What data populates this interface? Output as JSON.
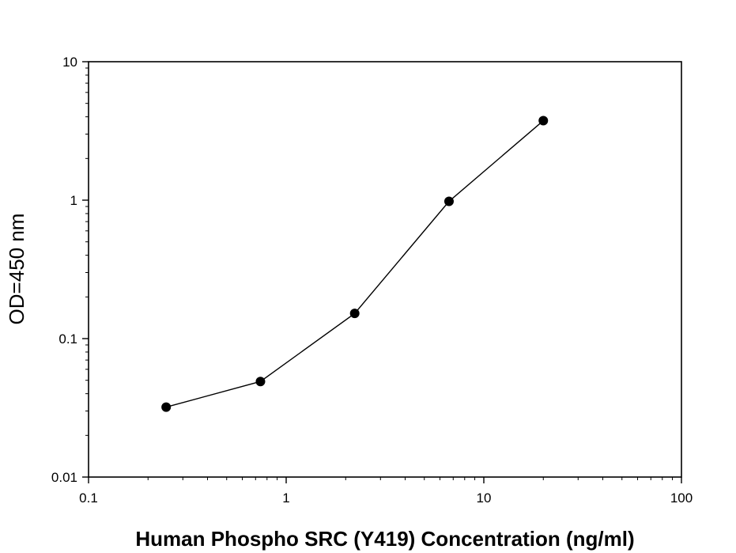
{
  "chart_data": {
    "type": "line",
    "title": "",
    "xlabel": "Human Phospho SRC (Y419) Concentration (ng/ml)",
    "ylabel": "OD=450 nm",
    "xscale": "log",
    "yscale": "log",
    "xlim": [
      0.1,
      100
    ],
    "ylim": [
      0.01,
      10
    ],
    "xticks": [
      {
        "value": 0.1,
        "label": "0.1"
      },
      {
        "value": 1,
        "label": "1"
      },
      {
        "value": 10,
        "label": "10"
      },
      {
        "value": 100,
        "label": "100"
      }
    ],
    "yticks": [
      {
        "value": 0.01,
        "label": "0.01"
      },
      {
        "value": 0.1,
        "label": "0.1"
      },
      {
        "value": 1,
        "label": "1"
      },
      {
        "value": 10,
        "label": "10"
      }
    ],
    "grid": false,
    "legend": "none",
    "series": [
      {
        "marker": "filled-circle",
        "color": "#000000",
        "points": [
          {
            "x": 0.247,
            "y": 0.032
          },
          {
            "x": 0.741,
            "y": 0.049
          },
          {
            "x": 2.222,
            "y": 0.152
          },
          {
            "x": 6.667,
            "y": 0.98
          },
          {
            "x": 20,
            "y": 3.75
          }
        ]
      }
    ]
  }
}
